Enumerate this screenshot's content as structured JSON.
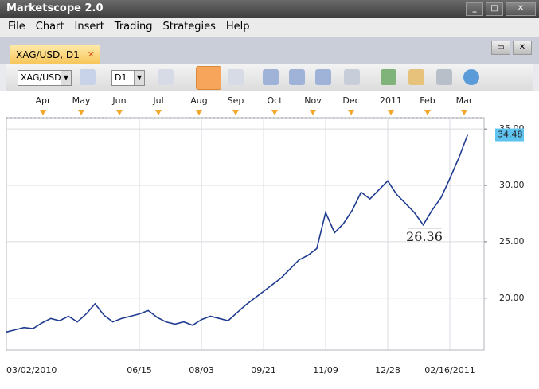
{
  "window": {
    "title": "Marketscope 2.0"
  },
  "menu": [
    "File",
    "Chart",
    "Insert",
    "Trading",
    "Strategies",
    "Help"
  ],
  "tab": {
    "label": "XAG/USD, D1"
  },
  "toolbar": {
    "instrument": "XAG/USD",
    "period": "D1"
  },
  "chart_data": {
    "type": "line",
    "color": "#1f3b8f",
    "months": [
      "Apr",
      "May",
      "Jun",
      "Jul",
      "Aug",
      "Sep",
      "Oct",
      "Nov",
      "Dec",
      "2011",
      "Feb",
      "Mar"
    ],
    "categories": [
      "03/02/2010",
      null,
      null,
      null,
      null,
      null,
      null,
      null,
      null,
      null,
      null,
      null,
      null,
      null,
      null,
      "06/15",
      null,
      null,
      null,
      null,
      null,
      null,
      "08/03",
      null,
      null,
      null,
      null,
      null,
      null,
      "09/21",
      null,
      null,
      null,
      null,
      null,
      null,
      "11/09",
      null,
      null,
      null,
      null,
      null,
      null,
      "12/28",
      null,
      null,
      null,
      null,
      null,
      null,
      "02/16/2011",
      null,
      null
    ],
    "values": [
      17.0,
      17.2,
      17.4,
      17.3,
      17.8,
      18.2,
      18.0,
      18.4,
      17.9,
      18.6,
      19.5,
      18.5,
      17.9,
      18.2,
      18.4,
      18.6,
      18.9,
      18.3,
      17.9,
      17.7,
      17.9,
      17.6,
      18.1,
      18.4,
      18.2,
      18.0,
      18.7,
      19.4,
      20.0,
      20.6,
      21.2,
      21.8,
      22.6,
      23.4,
      23.8,
      24.4,
      27.6,
      25.8,
      26.6,
      27.8,
      29.4,
      28.8,
      29.6,
      30.4,
      29.2,
      28.4,
      27.6,
      26.5,
      27.8,
      28.9,
      30.6,
      32.4,
      34.48
    ],
    "ylim": [
      15.4,
      36
    ],
    "yticks": [
      {
        "value": 20,
        "label": "20.00"
      },
      {
        "value": 25,
        "label": "25.00"
      },
      {
        "value": 30,
        "label": "30.00"
      },
      {
        "value": 35,
        "label": "35.00"
      }
    ],
    "last_price": {
      "value": 34.48,
      "label": "34.48"
    },
    "annotation": {
      "value": 26.36,
      "label": "26.36"
    },
    "grid": true
  }
}
